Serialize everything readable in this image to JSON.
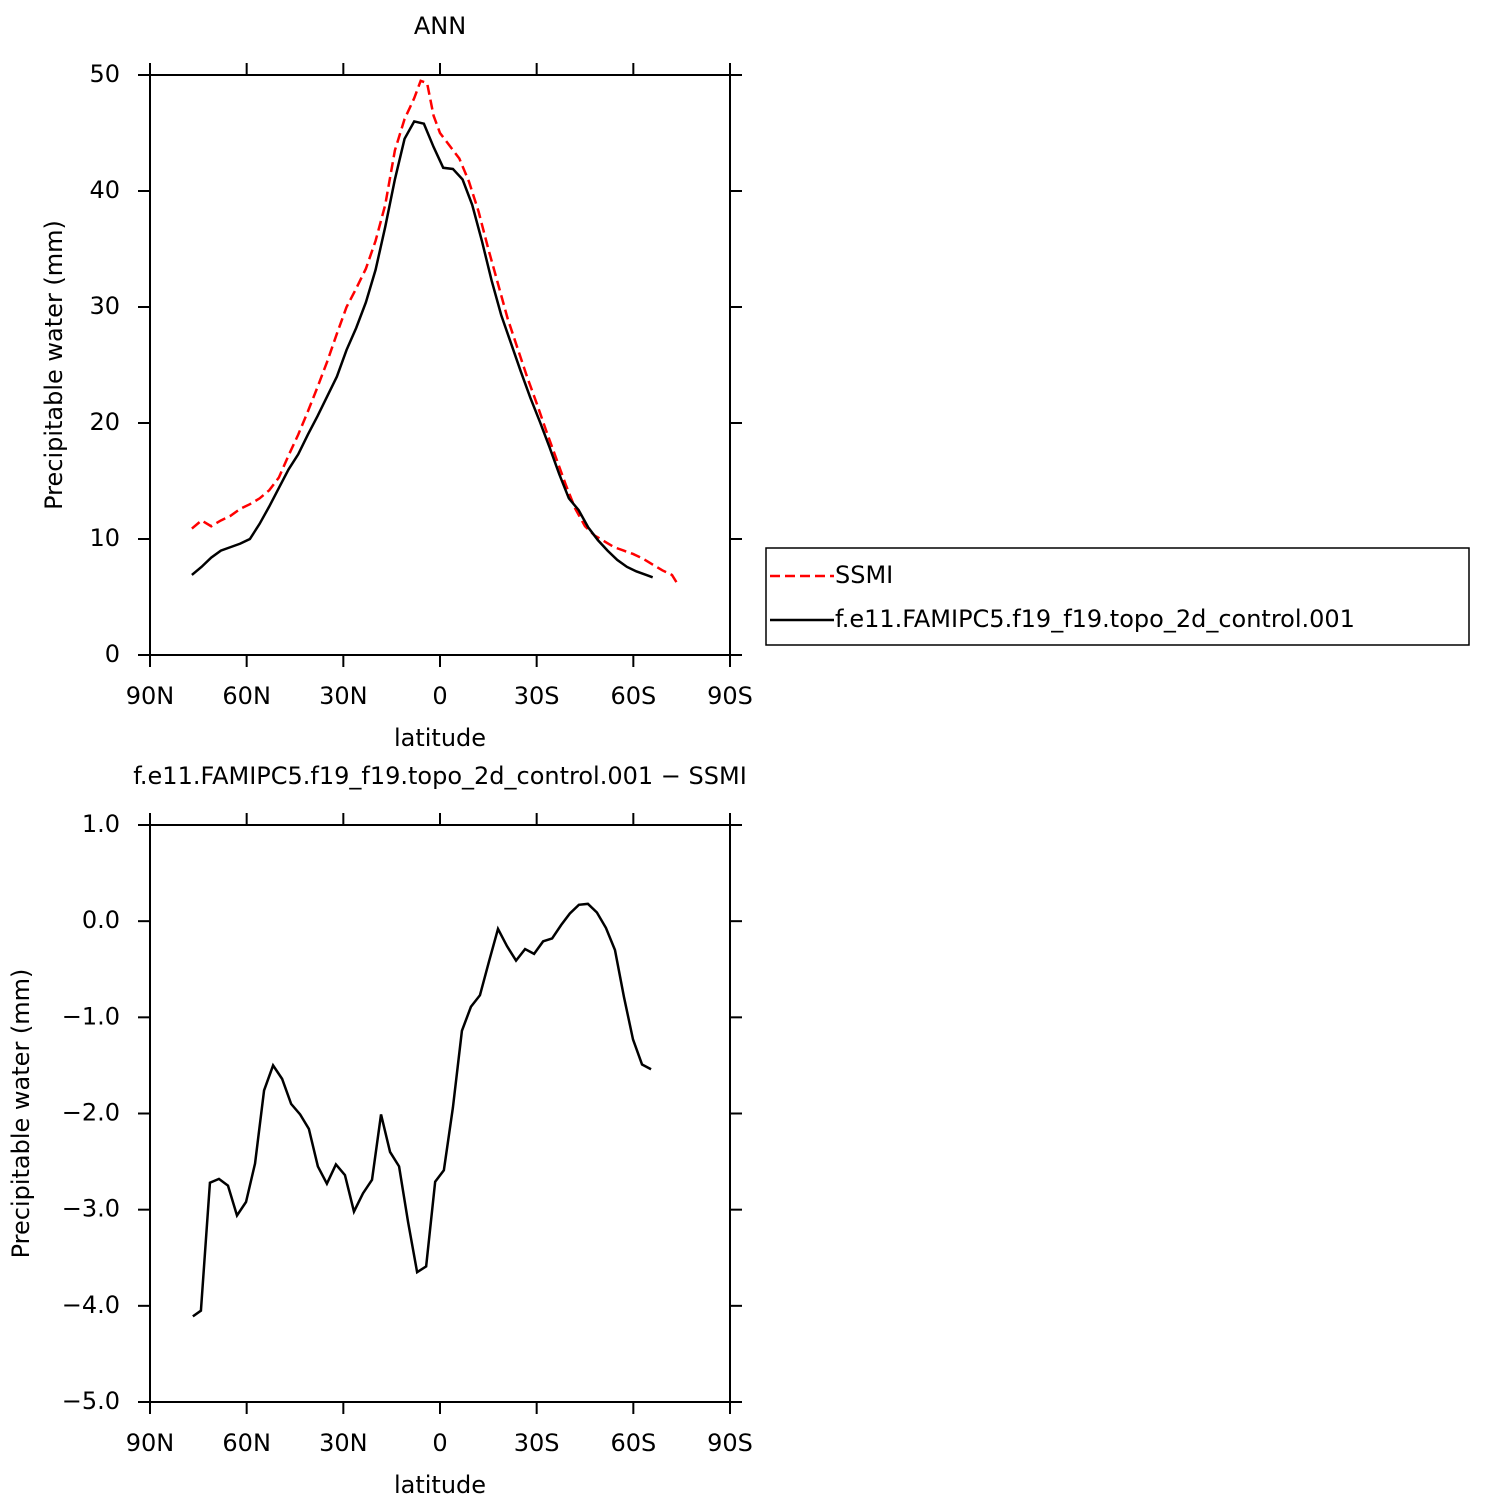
{
  "chart_data": [
    {
      "type": "line",
      "title": "ANN",
      "xlabel": "latitude",
      "ylabel": "Precipitable water (mm)",
      "xlim": [
        90,
        -90
      ],
      "xticks": [
        {
          "value": 90,
          "label": "90N"
        },
        {
          "value": 60,
          "label": "60N"
        },
        {
          "value": 30,
          "label": "30N"
        },
        0,
        {
          "value": -30,
          "label": "30S"
        },
        {
          "value": -60,
          "label": "60S"
        },
        {
          "value": -90,
          "label": "90S"
        }
      ],
      "ylim": [
        0,
        50
      ],
      "yticks": [
        0,
        10,
        20,
        30,
        40,
        50
      ],
      "legend": "right",
      "series": [
        {
          "name": "SSMI",
          "color": "#ff0000",
          "dash": true,
          "x": [
            77,
            74,
            71,
            68,
            65,
            62,
            59,
            56,
            53,
            50,
            47,
            44,
            41,
            38,
            35,
            32,
            29,
            26,
            23,
            20,
            17,
            14,
            11,
            8,
            6,
            4,
            2,
            0,
            -3,
            -6,
            -9,
            -12,
            -15,
            -18,
            -21,
            -24,
            -27,
            -30,
            -33,
            -36,
            -39,
            -42,
            -45,
            -48,
            -51,
            -54,
            -57,
            -60,
            -63,
            -66,
            -69,
            -72,
            -74
          ],
          "values": [
            10.9,
            11.6,
            11.1,
            11.6,
            12.0,
            12.6,
            13.0,
            13.5,
            14.2,
            15.3,
            17.2,
            19.0,
            21.0,
            23.1,
            25.3,
            27.7,
            30.0,
            31.6,
            33.3,
            35.7,
            38.8,
            43.5,
            46.2,
            48.0,
            49.5,
            49.3,
            46.5,
            45.0,
            43.9,
            42.8,
            40.8,
            38.2,
            35.0,
            32.0,
            29.0,
            26.5,
            24.0,
            21.7,
            19.3,
            17.0,
            14.7,
            12.6,
            11.1,
            10.3,
            9.8,
            9.3,
            9.0,
            8.7,
            8.3,
            7.8,
            7.3,
            6.9,
            6.0
          ]
        },
        {
          "name": "f.e11.FAMIPC5.f19_f19.topo_2d_control.001",
          "color": "#000000",
          "dash": false,
          "x": [
            77,
            74,
            71,
            68,
            65,
            62,
            59,
            56,
            53,
            50,
            47,
            44,
            41,
            38,
            35,
            32,
            29,
            26,
            23,
            20,
            17,
            14,
            11,
            8,
            5,
            2,
            -1,
            -4,
            -7,
            -10,
            -13,
            -16,
            -19,
            -22,
            -25,
            -28,
            -31,
            -34,
            -37,
            -40,
            -43,
            -46,
            -49,
            -52,
            -55,
            -58,
            -61,
            -64,
            -66
          ],
          "values": [
            6.9,
            7.6,
            8.4,
            9.0,
            9.3,
            9.6,
            10.0,
            11.3,
            12.8,
            14.4,
            16.0,
            17.3,
            19.0,
            20.6,
            22.3,
            24.0,
            26.3,
            28.2,
            30.4,
            33.2,
            36.9,
            41.0,
            44.5,
            46.0,
            45.8,
            43.8,
            42.0,
            41.9,
            41.0,
            38.8,
            35.7,
            32.3,
            29.3,
            26.9,
            24.5,
            22.2,
            20.1,
            17.9,
            15.6,
            13.5,
            12.5,
            11.0,
            9.9,
            9.0,
            8.2,
            7.6,
            7.2,
            6.9,
            6.7
          ]
        }
      ]
    },
    {
      "type": "line",
      "title": "f.e11.FAMIPC5.f19_f19.topo_2d_control.001 − SSMI",
      "xlabel": "latitude",
      "ylabel": "Precipitable water (mm)",
      "xlim": [
        90,
        -90
      ],
      "xticks": [
        {
          "value": 90,
          "label": "90N"
        },
        {
          "value": 60,
          "label": "60N"
        },
        {
          "value": 30,
          "label": "30N"
        },
        0,
        {
          "value": -30,
          "label": "30S"
        },
        {
          "value": -60,
          "label": "60S"
        },
        {
          "value": -90,
          "label": "90S"
        }
      ],
      "ylim": [
        -5,
        1
      ],
      "yticks": [
        {
          "value": -5,
          "label": "−5.0"
        },
        {
          "value": -4,
          "label": "−4.0"
        },
        {
          "value": -3,
          "label": "−3.0"
        },
        {
          "value": -2,
          "label": "−2.0"
        },
        {
          "value": -1,
          "label": "−1.0"
        },
        {
          "value": 0,
          "label": "0.0"
        },
        {
          "value": 1,
          "label": "1.0"
        }
      ],
      "series": [
        {
          "color": "#000000",
          "dash": false,
          "x": [
            76.7,
            74.2,
            71.4,
            68.6,
            65.8,
            63,
            60.2,
            57.4,
            54.6,
            51.8,
            49,
            46.2,
            43.4,
            40.7,
            37.9,
            35.1,
            32.3,
            29.5,
            26.7,
            23.9,
            21.1,
            18.3,
            15.5,
            12.7,
            9.9,
            7.1,
            4.3,
            1.5,
            -1.2,
            -4,
            -6.8,
            -9.6,
            -12.4,
            -15.2,
            -18,
            -20.8,
            -23.6,
            -26.4,
            -29.2,
            -32,
            -34.8,
            -37.6,
            -40.3,
            -43.1,
            -45.9,
            -48.7,
            -51.5,
            -54.3,
            -57.1,
            -59.9,
            -62.7,
            -65.5
          ],
          "values": [
            -4.11,
            -4.05,
            -2.72,
            -2.68,
            -2.75,
            -3.06,
            -2.92,
            -2.52,
            -1.76,
            -1.5,
            -1.64,
            -1.9,
            -2.01,
            -2.16,
            -2.55,
            -2.73,
            -2.53,
            -2.64,
            -3.02,
            -2.83,
            -2.69,
            -2.01,
            -2.4,
            -2.55,
            -3.13,
            -3.65,
            -3.59,
            -2.71,
            -2.59,
            -1.94,
            -1.14,
            -0.89,
            -0.77,
            -0.42,
            -0.08,
            -0.26,
            -0.41,
            -0.29,
            -0.34,
            -0.21,
            -0.18,
            -0.04,
            0.08,
            0.17,
            0.18,
            0.09,
            -0.07,
            -0.3,
            -0.79,
            -1.23,
            -1.49,
            -1.54
          ]
        }
      ]
    }
  ]
}
